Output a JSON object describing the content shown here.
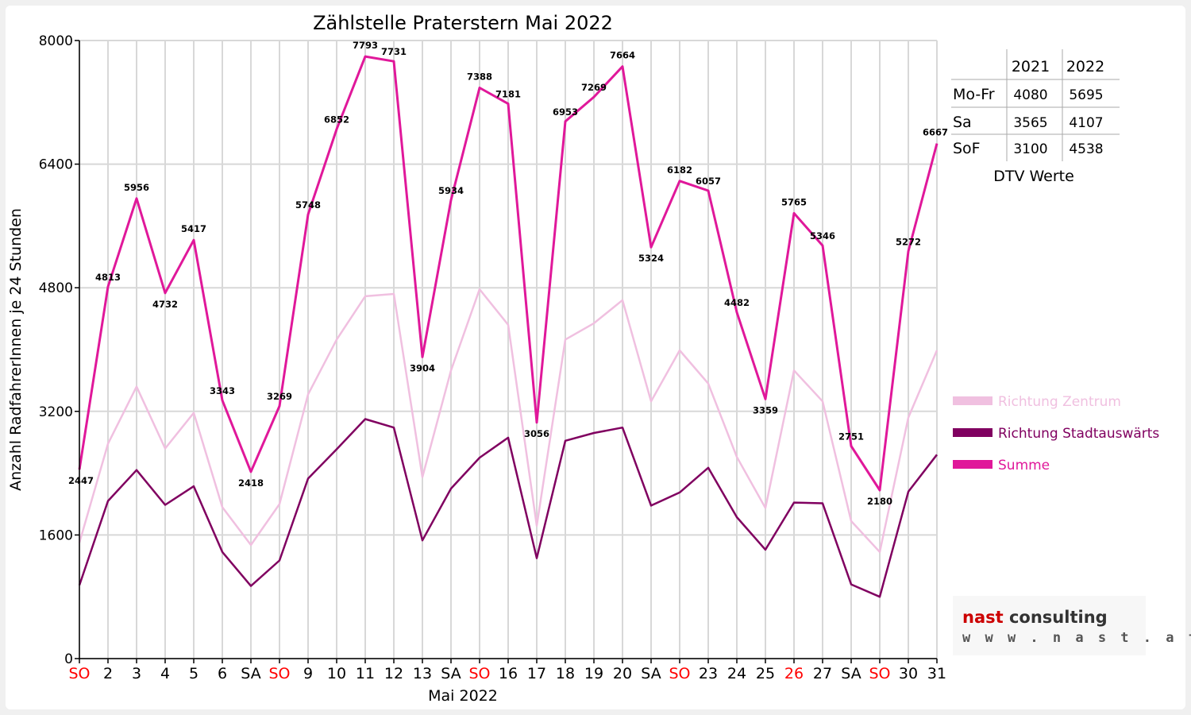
{
  "chart_data": {
    "type": "line",
    "title": "Zählstelle Praterstern Mai 2022",
    "xlabel": "Mai 2022",
    "ylabel": "Anzahl RadfahrerInnen je 24 Stunden",
    "ylim": [
      0,
      8000
    ],
    "yticks": [
      "0",
      "1600",
      "3200",
      "4800",
      "6400",
      "8000"
    ],
    "grid": true,
    "legend_position": "right",
    "categories": [
      "SO",
      "2",
      "3",
      "4",
      "5",
      "6",
      "SA",
      "SO",
      "9",
      "10",
      "11",
      "12",
      "13",
      "SA",
      "SO",
      "16",
      "17",
      "18",
      "19",
      "20",
      "SA",
      "SO",
      "23",
      "24",
      "25",
      "26",
      "27",
      "SA",
      "SO",
      "30",
      "31"
    ],
    "highlight_categories": [
      0,
      7,
      14,
      21,
      25,
      28
    ],
    "series": [
      {
        "name": "Richtung Zentrum",
        "color": "#f0c0e0",
        "values": [
          1500,
          2780,
          3520,
          2720,
          3180,
          1960,
          1470,
          2000,
          3420,
          4130,
          4690,
          4720,
          2350,
          3730,
          4780,
          4320,
          1720,
          4130,
          4340,
          4640,
          3330,
          3990,
          3560,
          2610,
          1950,
          3730,
          3330,
          1780,
          1380,
          3120,
          3990
        ]
      },
      {
        "name": "Richtung Stadtauswärts",
        "color": "#800060",
        "values": [
          950,
          2040,
          2440,
          1990,
          2230,
          1380,
          940,
          1270,
          2330,
          2710,
          3100,
          2990,
          1530,
          2200,
          2600,
          2860,
          1300,
          2820,
          2920,
          2990,
          1980,
          2150,
          2470,
          1830,
          1410,
          2020,
          2010,
          960,
          800,
          2160,
          2640
        ]
      },
      {
        "name": "Summe",
        "color": "#e0189a",
        "values": [
          2447,
          4813,
          5956,
          4732,
          5417,
          3343,
          2418,
          3269,
          5748,
          6852,
          7793,
          7731,
          3904,
          5934,
          7388,
          7181,
          3056,
          6953,
          7269,
          7664,
          5324,
          6182,
          6057,
          4482,
          3359,
          5765,
          5346,
          2751,
          2180,
          5272,
          6667
        ]
      }
    ],
    "data_labels": [
      "2447",
      "4813",
      "5956",
      "4732",
      "5417",
      "3343",
      "2418",
      "3269",
      "5748",
      "6852",
      "7793",
      "7731",
      "3904",
      "5934",
      "7388",
      "7181",
      "3056",
      "6953",
      "7269",
      "7664",
      "5324",
      "6182",
      "6057",
      "4482",
      "3359",
      "5765",
      "5346",
      "2751",
      "2180",
      "5272",
      "6667"
    ]
  },
  "dtv_table": {
    "columns": [
      "2021",
      "2022"
    ],
    "rows": [
      {
        "label": "Mo-Fr",
        "v2021": "4080",
        "v2022": "5695"
      },
      {
        "label": "Sa",
        "v2021": "3565",
        "v2022": "4107"
      },
      {
        "label": "SoF",
        "v2021": "3100",
        "v2022": "4538"
      }
    ],
    "caption": "DTV Werte"
  },
  "logo": {
    "name_part1": "nast",
    "name_part2": "consulting",
    "url": "w w w . n a s t . a t",
    "color_part1": "#cc0000",
    "color_part2": "#333333"
  }
}
